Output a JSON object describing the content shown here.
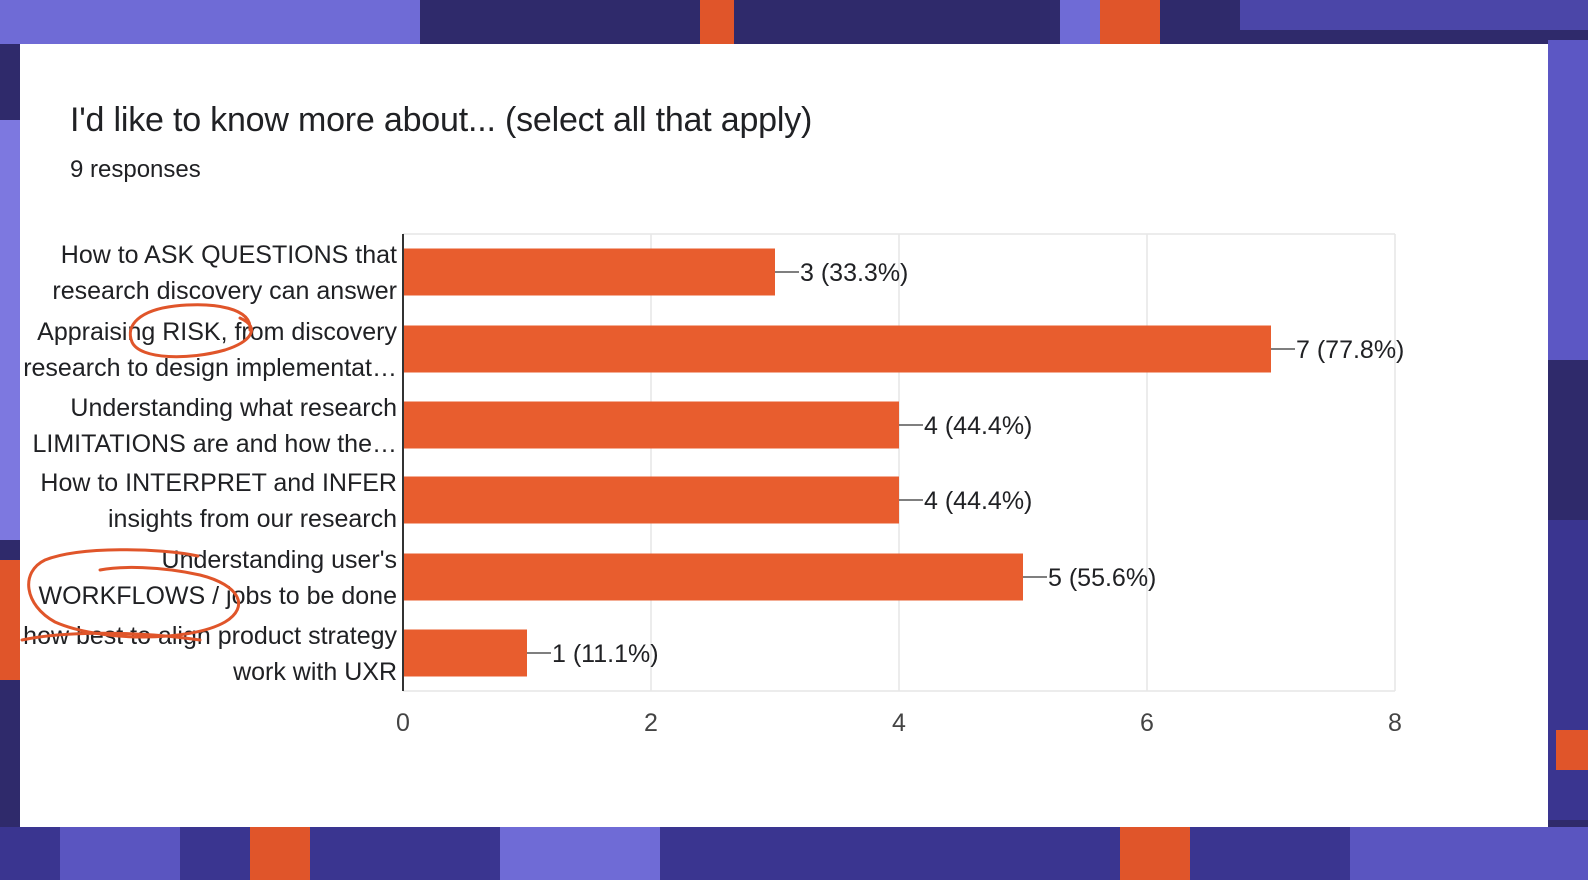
{
  "form": {
    "question": "I'd like to know more about... (select all that apply)",
    "response_count": "9 responses"
  },
  "colors": {
    "bar": "#e85d2e",
    "annotation": "#e0552a",
    "background": "#2f2a6b"
  },
  "chart_data": {
    "type": "bar",
    "orientation": "horizontal",
    "title": "",
    "xlabel": "",
    "ylabel": "",
    "categories": [
      [
        "How to ASK QUESTIONS that",
        "research discovery can answer"
      ],
      [
        "Appraising RISK, from discovery",
        "research to design implementat…"
      ],
      [
        "Understanding what research",
        "LIMITATIONS are and how the…"
      ],
      [
        "How to INTERPRET and INFER",
        "insights from our research"
      ],
      [
        "Understanding user's",
        "WORKFLOWS / jobs to be done"
      ],
      [
        "how best to align product strategy",
        "work with UXR"
      ]
    ],
    "values": [
      3,
      7,
      4,
      4,
      5,
      1
    ],
    "value_labels": [
      "3 (33.3%)",
      "7 (77.8%)",
      "4 (44.4%)",
      "4 (44.4%)",
      "5 (55.6%)",
      "1 (11.1%)"
    ],
    "xlim": [
      0,
      8
    ],
    "xticks": [
      0,
      2,
      4,
      6,
      8
    ],
    "grid": true,
    "legend": "none"
  }
}
